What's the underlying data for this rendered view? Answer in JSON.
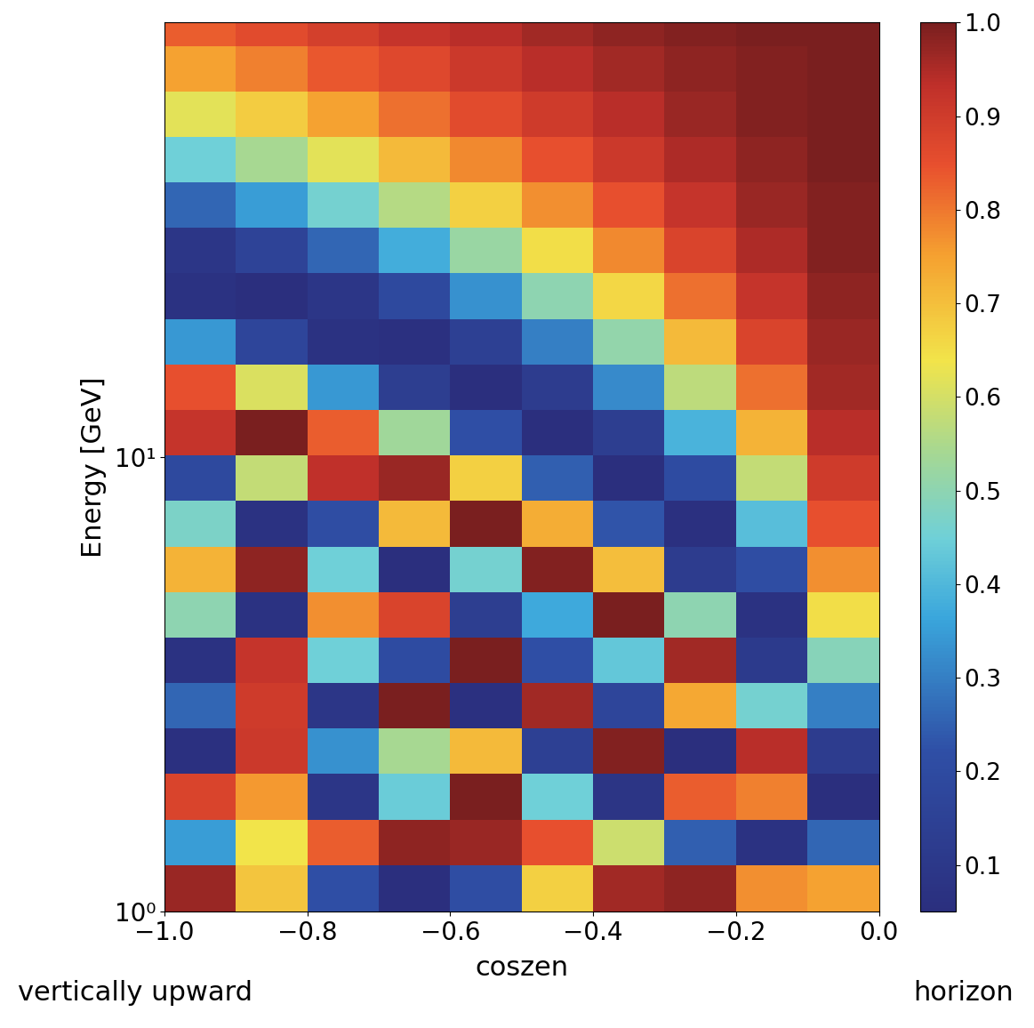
{
  "chart_data": {
    "type": "heatmap",
    "x_label": "coszen",
    "y_label": "Energy [GeV]",
    "annotations": [
      "vertically upward",
      "horizon"
    ],
    "log": "y",
    "x": [
      -0.95,
      -0.85,
      -0.75,
      -0.65,
      -0.55,
      -0.45,
      -0.35,
      -0.25,
      -0.15,
      -0.05
    ],
    "y": [
      1.12,
      1.41,
      1.78,
      2.24,
      2.82,
      3.55,
      4.47,
      5.62,
      7.08,
      8.91,
      11.2,
      14.1,
      17.8,
      22.4,
      28.2,
      35.5,
      44.7,
      56.2,
      70.8,
      89.1
    ],
    "cells": [
      [
        0.97,
        0.69,
        0.22,
        0.05,
        0.21,
        0.67,
        0.96,
        0.98,
        0.77,
        0.75
      ],
      [
        0.35,
        0.64,
        0.83,
        0.98,
        0.97,
        0.85,
        0.59,
        0.25,
        0.07,
        0.26
      ],
      [
        0.88,
        0.76,
        0.09,
        0.44,
        1.0,
        0.45,
        0.08,
        0.83,
        0.79,
        0.05
      ],
      [
        0.06,
        0.91,
        0.33,
        0.54,
        0.71,
        0.14,
        0.99,
        0.05,
        0.94,
        0.12
      ],
      [
        0.26,
        0.9,
        0.09,
        1.0,
        0.06,
        0.96,
        0.17,
        0.74,
        0.46,
        0.3
      ],
      [
        0.07,
        0.92,
        0.45,
        0.2,
        1.0,
        0.22,
        0.43,
        0.96,
        0.11,
        0.49
      ],
      [
        0.5,
        0.07,
        0.77,
        0.88,
        0.13,
        0.37,
        1.0,
        0.5,
        0.07,
        0.65
      ],
      [
        0.72,
        0.98,
        0.45,
        0.05,
        0.46,
        0.99,
        0.7,
        0.12,
        0.21,
        0.77
      ],
      [
        0.47,
        0.07,
        0.21,
        0.71,
        1.0,
        0.73,
        0.23,
        0.06,
        0.41,
        0.85
      ],
      [
        0.19,
        0.58,
        0.93,
        0.97,
        0.67,
        0.25,
        0.05,
        0.2,
        0.58,
        0.9
      ],
      [
        0.92,
        1.0,
        0.83,
        0.53,
        0.22,
        0.05,
        0.13,
        0.39,
        0.72,
        0.94
      ],
      [
        0.85,
        0.61,
        0.34,
        0.13,
        0.05,
        0.12,
        0.32,
        0.57,
        0.81,
        0.96
      ],
      [
        0.34,
        0.17,
        0.07,
        0.06,
        0.14,
        0.3,
        0.51,
        0.71,
        0.88,
        0.97
      ],
      [
        0.07,
        0.05,
        0.09,
        0.19,
        0.33,
        0.5,
        0.66,
        0.81,
        0.92,
        0.98
      ],
      [
        0.09,
        0.16,
        0.26,
        0.38,
        0.52,
        0.65,
        0.78,
        0.88,
        0.95,
        0.99
      ],
      [
        0.26,
        0.35,
        0.46,
        0.56,
        0.67,
        0.77,
        0.85,
        0.92,
        0.97,
        0.99
      ],
      [
        0.45,
        0.54,
        0.62,
        0.71,
        0.78,
        0.85,
        0.91,
        0.95,
        0.98,
        1.0
      ],
      [
        0.62,
        0.68,
        0.75,
        0.81,
        0.86,
        0.9,
        0.94,
        0.97,
        0.99,
        1.0
      ],
      [
        0.75,
        0.79,
        0.84,
        0.87,
        0.91,
        0.94,
        0.96,
        0.98,
        0.99,
        1.0
      ],
      [
        0.83,
        0.86,
        0.89,
        0.92,
        0.94,
        0.96,
        0.98,
        0.99,
        1.0,
        1.0
      ]
    ],
    "xlim": [
      -1.0,
      0.0
    ],
    "ylim": [
      1,
      90
    ],
    "xticks": [
      {
        "value": -1.0,
        "label": "−1.0"
      },
      {
        "value": -0.8,
        "label": "−0.8"
      },
      {
        "value": -0.6,
        "label": "−0.6"
      },
      {
        "value": -0.4,
        "label": "−0.4"
      },
      {
        "value": -0.2,
        "label": "−0.2"
      },
      {
        "value": 0.0,
        "label": "0.0"
      }
    ],
    "yticks": [
      {
        "value": 1,
        "label": "10⁰"
      },
      {
        "value": 10,
        "label": "10¹"
      }
    ],
    "colorbar_range": [
      0.05,
      1.0
    ],
    "colorbar_ticks": [
      0.1,
      0.2,
      0.3,
      0.4,
      0.5,
      0.6,
      0.7,
      0.8,
      0.9,
      1.0
    ]
  }
}
